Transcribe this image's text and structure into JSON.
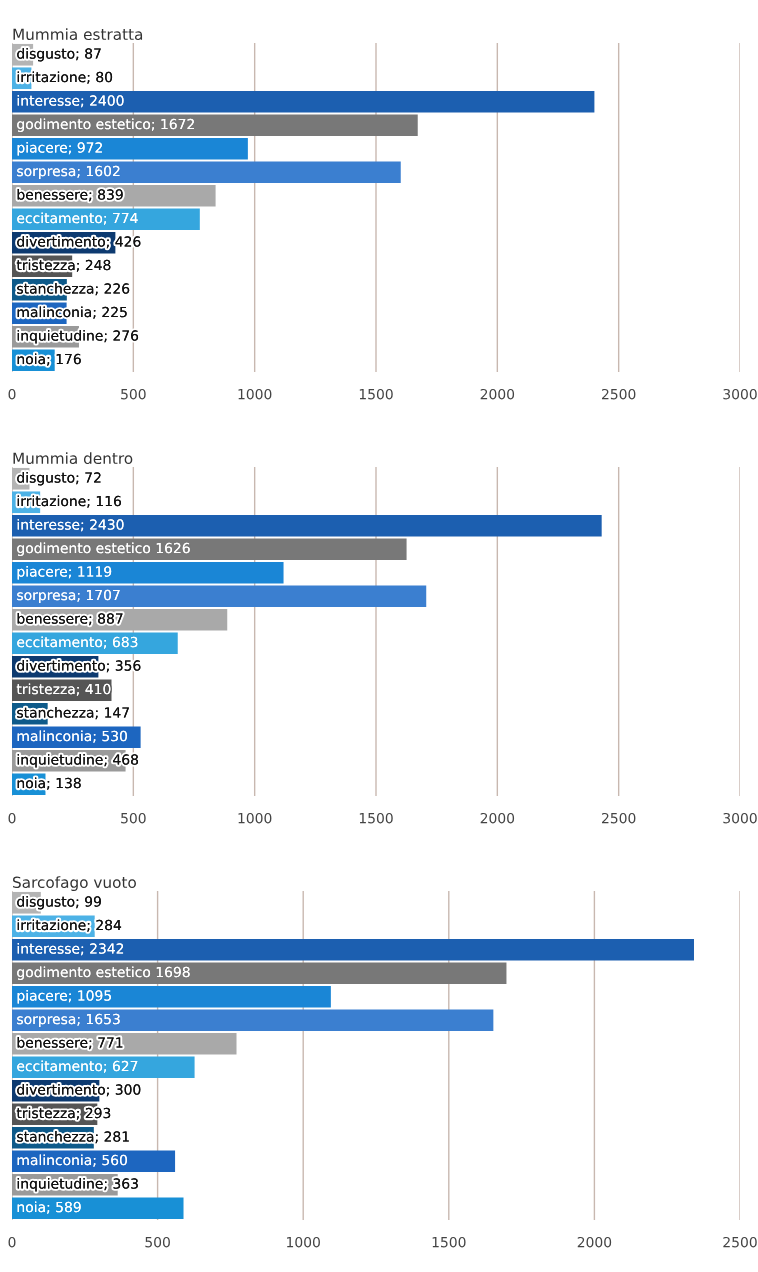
{
  "chart_data": [
    {
      "type": "bar",
      "orientation": "horizontal",
      "title": "Mummia estratta",
      "categories": [
        null,
        null,
        null,
        null,
        null,
        null,
        null,
        null,
        null,
        null,
        null,
        null,
        null,
        null
      ],
      "values": [
        87,
        80,
        2400,
        1672,
        972,
        1602,
        839,
        774,
        426,
        248,
        226,
        225,
        276,
        176
      ],
      "value_labels": [
        "disgusto; 87",
        "irritazione; 80",
        "interesse; 2400",
        "godimento estetico; 1672",
        "piacere; 972",
        "sorpresa; 1602",
        "benessere; 839",
        "eccitamento; 774",
        "divertimento; 426",
        "tristezza; 248",
        "stanchezza; 226",
        "malinconia; 225",
        "inquietudine; 276",
        "noia; 176"
      ],
      "colors": [
        "#b4b4b4",
        "#4db2e6",
        "#1c5fb0",
        "#787878",
        "#1a86d6",
        "#3b7fd0",
        "#a9a9a9",
        "#35a6de",
        "#0d3a70",
        "#555555",
        "#0e5a8a",
        "#1d66c0",
        "#9a9a9a",
        "#1890d6"
      ],
      "xlim": [
        0,
        3000
      ],
      "xticks": [
        0,
        500,
        1000,
        1500,
        2000,
        2500,
        3000
      ],
      "grid": "x",
      "tick_labels": "x"
    },
    {
      "type": "bar",
      "orientation": "horizontal",
      "title": "Mummia dentro",
      "categories": [
        null,
        null,
        null,
        null,
        null,
        null,
        null,
        null,
        null,
        null,
        null,
        null,
        null,
        null
      ],
      "values": [
        72,
        116,
        2430,
        1626,
        1119,
        1707,
        887,
        683,
        356,
        410,
        147,
        530,
        468,
        138
      ],
      "value_labels": [
        "disgusto; 72",
        "irritazione; 116",
        "interesse; 2430",
        "godimento estetico 1626",
        "piacere; 1119",
        "sorpresa; 1707",
        "benessere; 887",
        "eccitamento; 683",
        "divertimento; 356",
        "tristezza; 410",
        "stanchezza; 147",
        "malinconia; 530",
        "inquietudine; 468",
        "noia; 138"
      ],
      "colors": [
        "#b4b4b4",
        "#4db2e6",
        "#1c5fb0",
        "#787878",
        "#1a86d6",
        "#3b7fd0",
        "#a9a9a9",
        "#35a6de",
        "#0d3a70",
        "#555555",
        "#0e5a8a",
        "#1d66c0",
        "#9a9a9a",
        "#1890d6"
      ],
      "xlim": [
        0,
        3000
      ],
      "xticks": [
        0,
        500,
        1000,
        1500,
        2000,
        2500,
        3000
      ],
      "grid": "x",
      "tick_labels": "x"
    },
    {
      "type": "bar",
      "orientation": "horizontal",
      "title": "Sarcofago vuoto",
      "categories": [
        null,
        null,
        null,
        null,
        null,
        null,
        null,
        null,
        null,
        null,
        null,
        null,
        null,
        null
      ],
      "values": [
        99,
        284,
        2342,
        1698,
        1095,
        1653,
        771,
        627,
        300,
        293,
        281,
        560,
        363,
        589
      ],
      "value_labels": [
        "disgusto; 99",
        "irritazione; 284",
        "interesse; 2342",
        "godimento estetico 1698",
        "piacere; 1095",
        "sorpresa; 1653",
        "benessere; 771",
        "eccitamento; 627",
        "divertimento; 300",
        "tristezza; 293",
        "stanchezza; 281",
        "malinconia; 560",
        "inquietudine; 363",
        "noia; 589"
      ],
      "colors": [
        "#b4b4b4",
        "#4db2e6",
        "#1c5fb0",
        "#787878",
        "#1a86d6",
        "#3b7fd0",
        "#a9a9a9",
        "#35a6de",
        "#0d3a70",
        "#555555",
        "#0e5a8a",
        "#1d66c0",
        "#9a9a9a",
        "#1890d6"
      ],
      "xlim": [
        0,
        2500
      ],
      "xticks": [
        0,
        500,
        1000,
        1500,
        2000,
        2500
      ],
      "grid": "x",
      "tick_labels": "x"
    }
  ]
}
